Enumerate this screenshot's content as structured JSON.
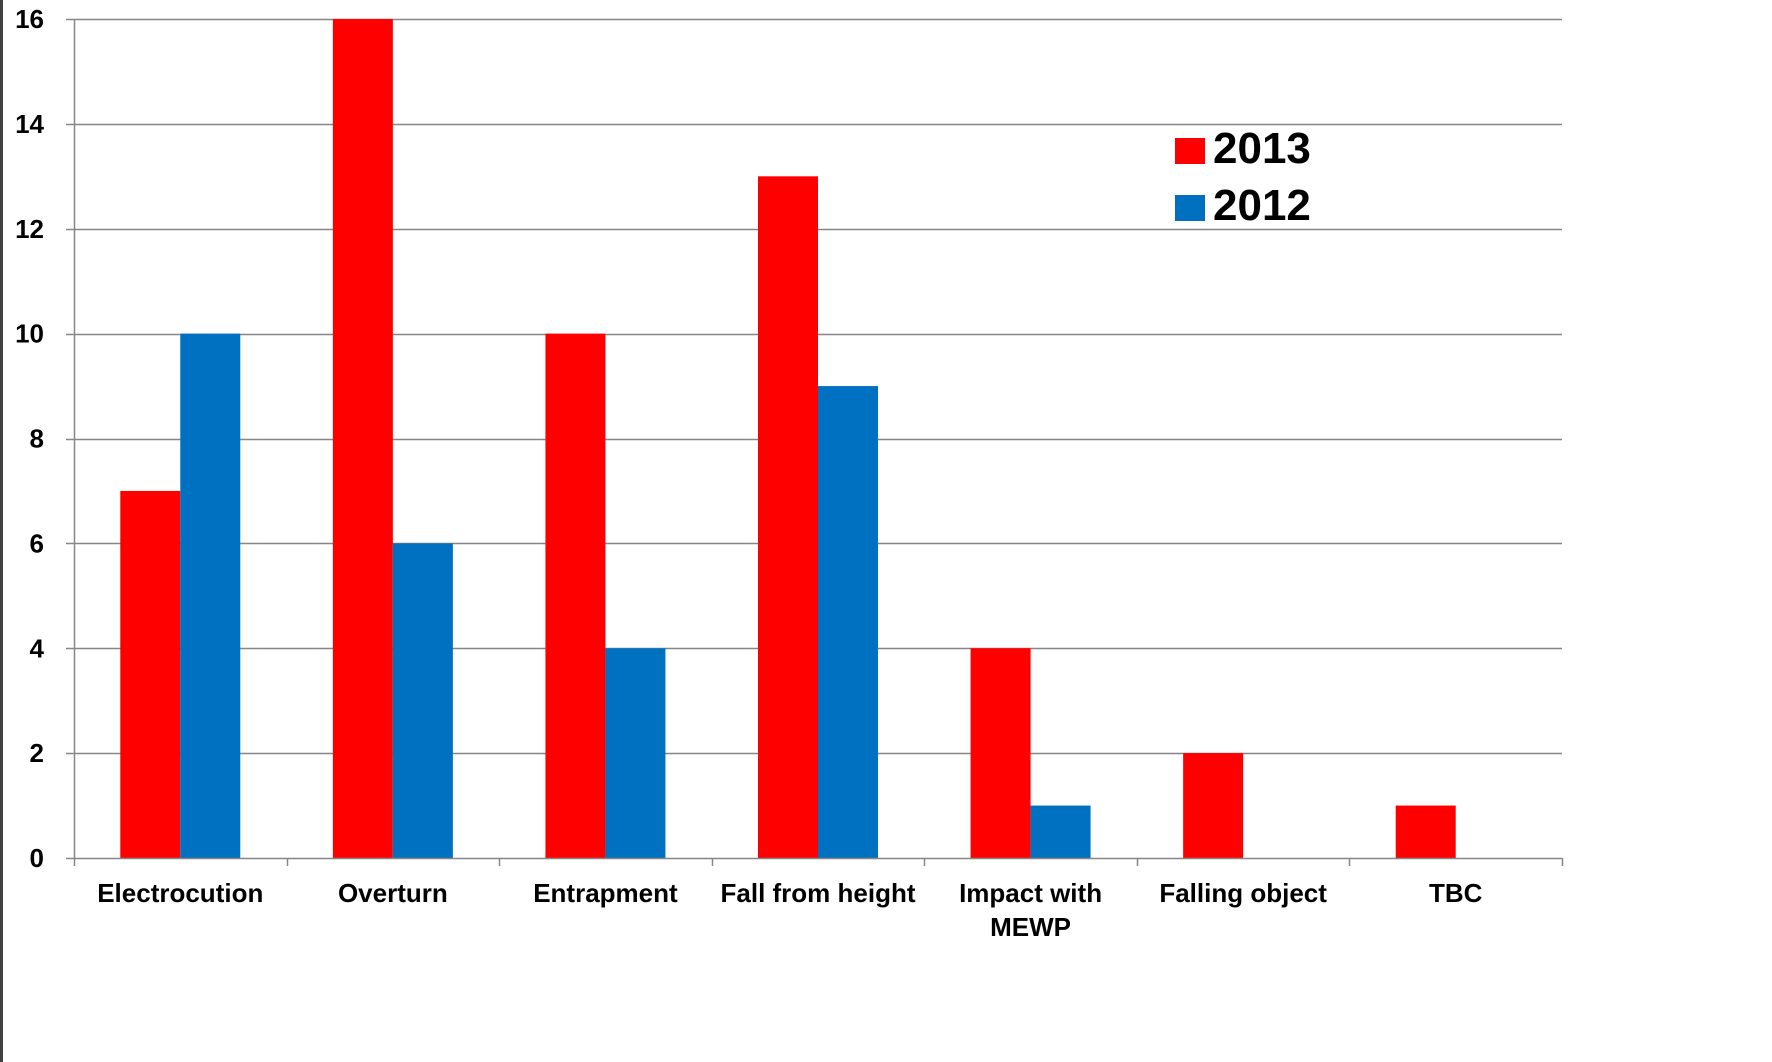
{
  "chart_data": {
    "type": "bar",
    "categories": [
      "Electrocution",
      "Overturn",
      "Entrapment",
      "Fall from height",
      "Impact with MEWP",
      "Falling object",
      "TBC"
    ],
    "category_lines": [
      [
        "Electrocution"
      ],
      [
        "Overturn"
      ],
      [
        "Entrapment"
      ],
      [
        "Fall from height"
      ],
      [
        "Impact with",
        "MEWP"
      ],
      [
        "Falling object"
      ],
      [
        "TBC"
      ]
    ],
    "series": [
      {
        "name": "2013",
        "color": "#FF0000",
        "values": [
          7,
          16,
          10,
          13,
          4,
          2,
          1
        ]
      },
      {
        "name": "2012",
        "color": "#0070C0",
        "values": [
          10,
          6,
          4,
          9,
          1,
          0,
          0
        ]
      }
    ],
    "ylim": [
      0,
      16
    ],
    "yticks": [
      0,
      2,
      4,
      6,
      8,
      10,
      12,
      14,
      16
    ],
    "grid": true,
    "legend_position": "top-right",
    "title": "",
    "xlabel": "",
    "ylabel": ""
  }
}
